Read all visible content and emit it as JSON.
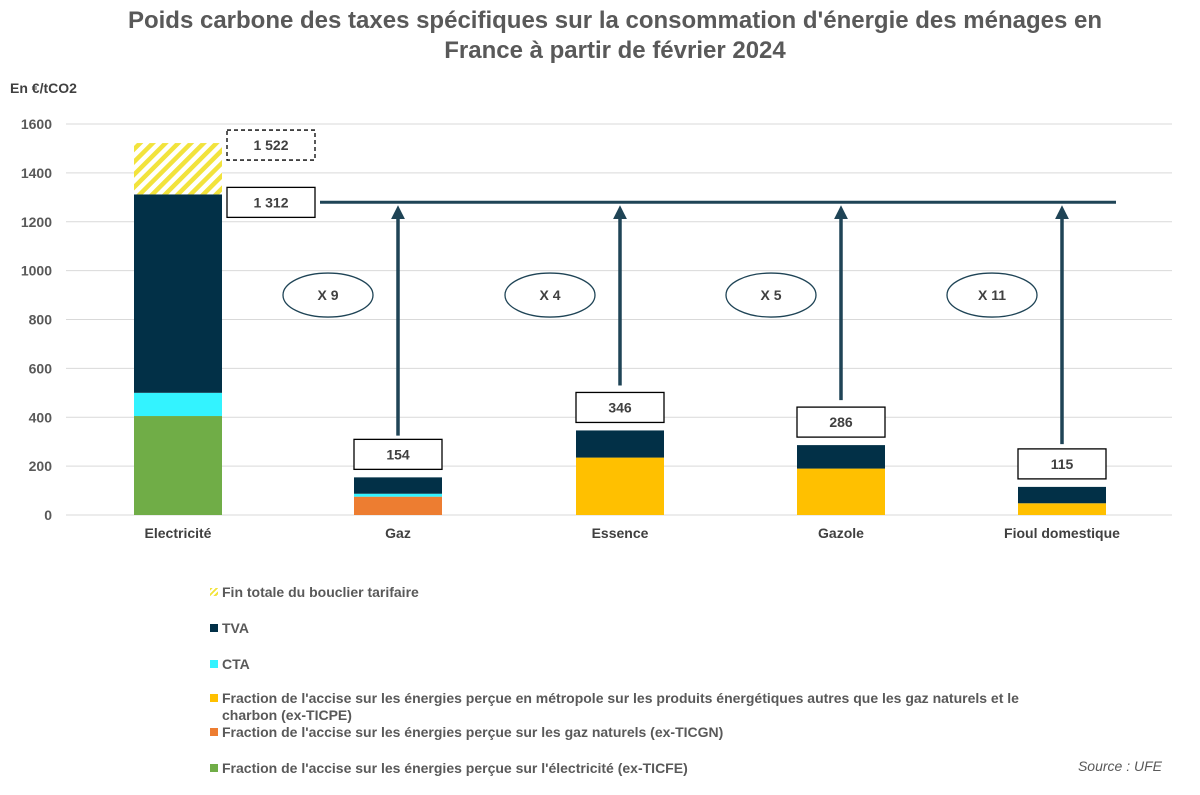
{
  "title": "Poids carbone des taxes spécifiques sur la consommation d'énergie des ménages en France à partir de février 2024",
  "source": "Source : UFE",
  "chart_data": {
    "type": "bar",
    "stacked": true,
    "ylabel": "En €/tCO2",
    "ylim": [
      0,
      1600
    ],
    "yticks": [
      0,
      200,
      400,
      600,
      800,
      1000,
      1200,
      1400,
      1600
    ],
    "grid": true,
    "categories": [
      "Electricité",
      "Gaz",
      "Essence",
      "Gazole",
      "Fioul domestique"
    ],
    "series": [
      {
        "name": "Fraction de l'accise sur les énergies perçue sur l'électricité (ex-TICFE)",
        "color": "#70AD47",
        "values": [
          405,
          0,
          0,
          0,
          0
        ]
      },
      {
        "name": "Fraction de l'accise sur les énergies perçue sur les gaz naturels (ex-TICGN)",
        "color": "#ED7D31",
        "values": [
          0,
          75,
          0,
          0,
          0
        ]
      },
      {
        "name": "Fraction de l'accise sur les énergies perçue en métropole sur les produits énergétiques autres que les gaz naturels et le charbon (ex-TICPE)",
        "color": "#FFC000",
        "values": [
          0,
          0,
          235,
          190,
          48
        ]
      },
      {
        "name": "CTA",
        "color": "#33F3FF",
        "values": [
          95,
          12,
          0,
          0,
          0
        ]
      },
      {
        "name": "TVA",
        "color": "#023047",
        "values": [
          812,
          67,
          111,
          96,
          67
        ]
      },
      {
        "name": "Fin totale du bouclier tarifaire",
        "color": "#F2E33C",
        "pattern": "hatch",
        "values": [
          210,
          0,
          0,
          0,
          0
        ]
      }
    ],
    "totals": [
      {
        "category": "Electricité",
        "value": 1312,
        "label": "1 312"
      },
      {
        "category": "Gaz",
        "value": 154,
        "label": "154"
      },
      {
        "category": "Essence",
        "value": 346,
        "label": "346"
      },
      {
        "category": "Gazole",
        "value": 286,
        "label": "286"
      },
      {
        "category": "Fioul domestique",
        "value": 115,
        "label": "115"
      }
    ],
    "total_with_shield_end": {
      "category": "Electricité",
      "value": 1522,
      "label": "1 522"
    },
    "reference_line": 1280,
    "multipliers": [
      {
        "category": "Gaz",
        "label": "X 9",
        "from": 325
      },
      {
        "category": "Essence",
        "label": "X 4",
        "from": 530
      },
      {
        "category": "Gazole",
        "label": "X 5",
        "from": 470
      },
      {
        "category": "Fioul domestique",
        "label": "X 11",
        "from": 290
      }
    ],
    "legend_order": [
      "Fin totale du bouclier tarifaire",
      "TVA",
      "CTA",
      "Fraction de l'accise sur les énergies perçue en métropole sur les produits énergétiques autres que les gaz naturels et le charbon (ex-TICPE)",
      "Fraction de l'accise sur les énergies perçue sur les gaz naturels (ex-TICGN)",
      "Fraction de l'accise sur les énergies perçue sur l'électricité (ex-TICFE)"
    ]
  }
}
